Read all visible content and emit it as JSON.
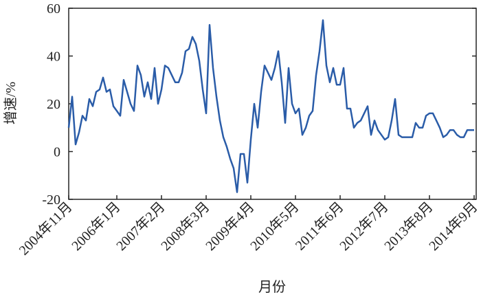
{
  "chart_data": {
    "type": "line",
    "x_label": "月份",
    "y_label": "增速/%",
    "categories": [
      "2004年11月",
      null,
      null,
      null,
      null,
      null,
      null,
      null,
      null,
      null,
      null,
      null,
      null,
      null,
      "2006年1月",
      null,
      null,
      null,
      null,
      null,
      null,
      null,
      null,
      null,
      null,
      null,
      null,
      "2007年2月",
      null,
      null,
      null,
      null,
      null,
      null,
      null,
      null,
      null,
      null,
      null,
      null,
      "2008年3月",
      null,
      null,
      null,
      null,
      null,
      null,
      null,
      null,
      null,
      null,
      null,
      null,
      "2009年4月",
      null,
      null,
      null,
      null,
      null,
      null,
      null,
      null,
      null,
      null,
      null,
      null,
      "2010年5月",
      null,
      null,
      null,
      null,
      null,
      null,
      null,
      null,
      null,
      null,
      null,
      null,
      "2011年6月",
      null,
      null,
      null,
      null,
      null,
      null,
      null,
      null,
      null,
      null,
      null,
      null,
      "2012年7月",
      null,
      null,
      null,
      null,
      null,
      null,
      null,
      null,
      null,
      null,
      null,
      null,
      "2013年8月",
      null,
      null,
      null,
      null,
      null,
      null,
      null,
      null,
      null,
      null,
      null,
      null,
      "2014年9月"
    ],
    "values": [
      10,
      23,
      3,
      8,
      15,
      13,
      22,
      19,
      25,
      26,
      31,
      25,
      26,
      19,
      17,
      15,
      30,
      25,
      20,
      17,
      36,
      32,
      23,
      29,
      22,
      35,
      20,
      26,
      36,
      35,
      32,
      29,
      29,
      33,
      42,
      43,
      48,
      45,
      38,
      26,
      16,
      53,
      35,
      23,
      13,
      6,
      2,
      -3,
      -7,
      -17,
      -1,
      -1,
      -13,
      5,
      20,
      10,
      25,
      36,
      33,
      30,
      35,
      42,
      29,
      12,
      35,
      20,
      16,
      18,
      7,
      10,
      15,
      17,
      32,
      42,
      55,
      36,
      29,
      35,
      28,
      28,
      35,
      18,
      18,
      10,
      12,
      13,
      16,
      19,
      7,
      13,
      9,
      7,
      5,
      6,
      13,
      22,
      7,
      6,
      6,
      6,
      6,
      12,
      10,
      10,
      15,
      16,
      16,
      13,
      10,
      6,
      7,
      9,
      9,
      7,
      6,
      6,
      9,
      9,
      9
    ],
    "color": "#2a5ca8",
    "ylim": [
      -20,
      60
    ],
    "yticks": [
      -20,
      0,
      20,
      40,
      60
    ]
  }
}
